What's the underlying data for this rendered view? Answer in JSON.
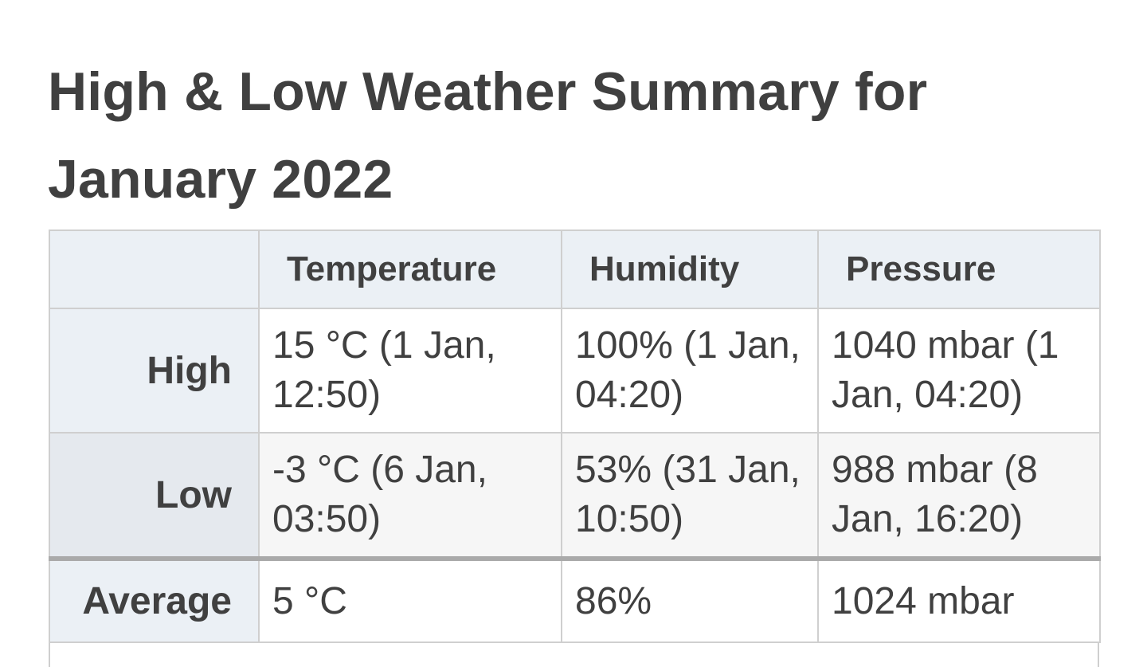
{
  "title": "High & Low Weather Summary for January 2022",
  "table": {
    "headers": {
      "corner": "",
      "temperature": "Temperature",
      "humidity": "Humidity",
      "pressure": "Pressure"
    },
    "rows": {
      "high": {
        "label": "High",
        "temperature": "15 °C (1 Jan, 12:50)",
        "humidity": "100% (1 Jan, 04:20)",
        "pressure": "1040 mbar (1 Jan, 04:20)"
      },
      "low": {
        "label": "Low",
        "temperature": "-3 °C (6 Jan, 03:50)",
        "humidity": "53% (31 Jan, 10:50)",
        "pressure": "988 mbar (8 Jan, 16:20)"
      },
      "average": {
        "label": "Average",
        "temperature": "5 °C",
        "humidity": "86%",
        "pressure": "1024 mbar"
      }
    }
  },
  "colors": {
    "header_bg": "#ebf0f5",
    "low_row_bg": "#f6f6f6",
    "border": "#cfcfcf",
    "average_divider": "#aaaaaa",
    "text": "#404040"
  }
}
